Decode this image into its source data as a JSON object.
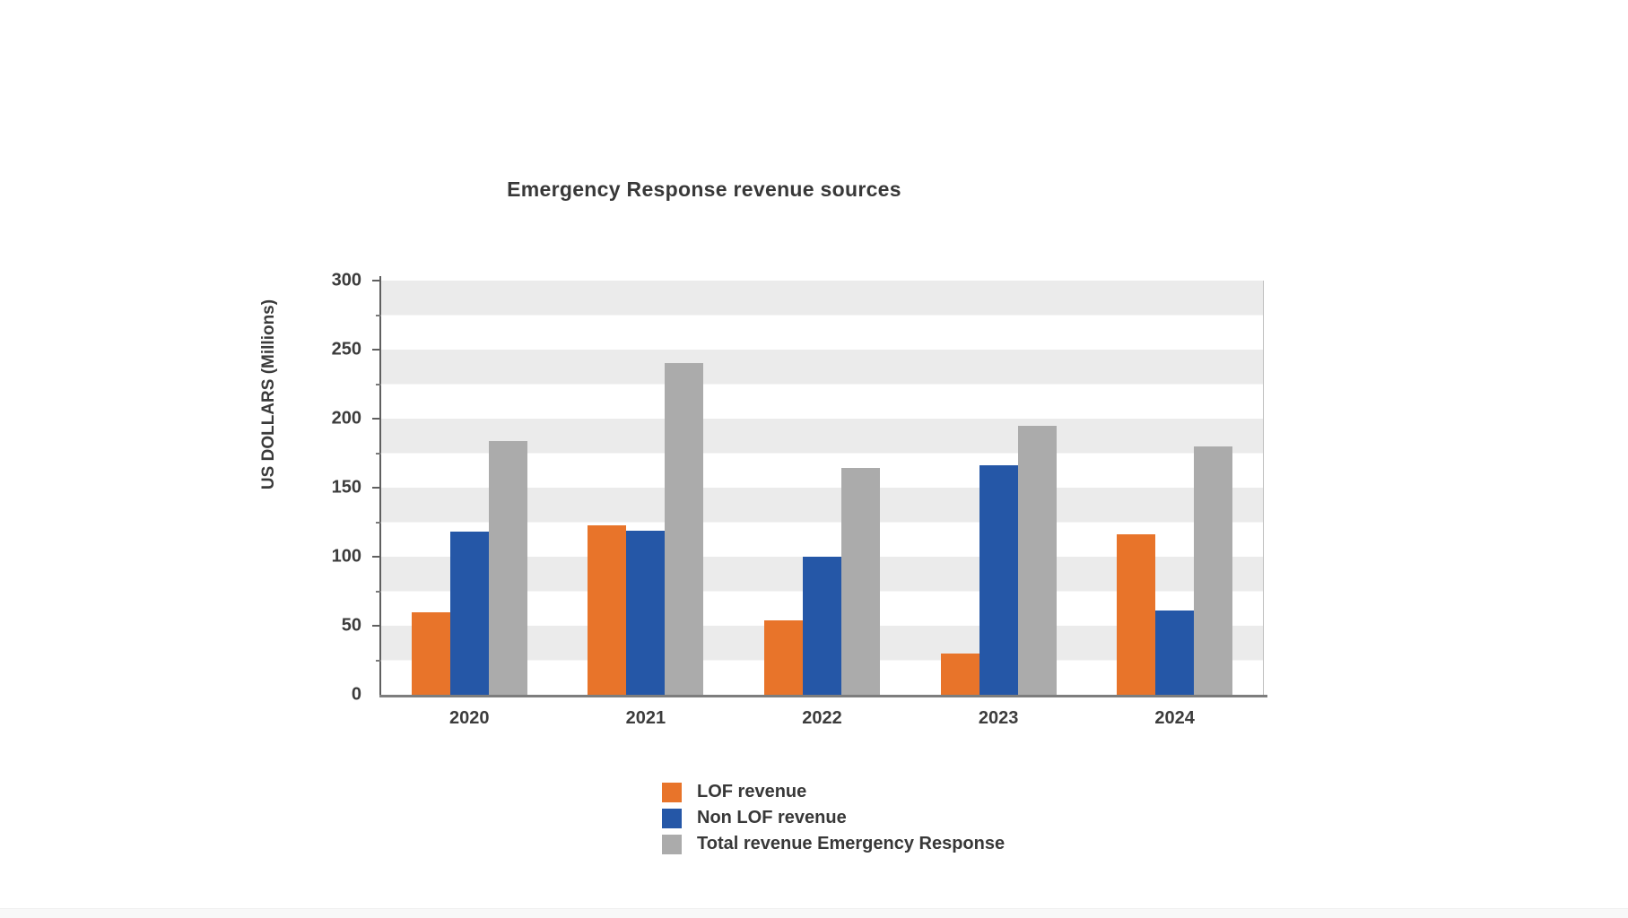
{
  "chart_data": {
    "type": "bar",
    "title": "Emergency Response revenue sources",
    "ylabel": "US DOLLARS (Millions)",
    "xlabel": "",
    "ylim": [
      0,
      300
    ],
    "yticks": [
      0,
      50,
      100,
      150,
      200,
      250,
      300
    ],
    "minor_tick_step": 25,
    "grid": "horizontal striped bands every 25 units",
    "legend_position": "bottom-left",
    "categories": [
      "2020",
      "2021",
      "2022",
      "2023",
      "2024"
    ],
    "series": [
      {
        "name": "LOF revenue",
        "color": "#E8742A",
        "values": [
          60,
          123,
          54,
          30,
          116
        ]
      },
      {
        "name": "Non LOF revenue",
        "color": "#2557A7",
        "values": [
          118,
          119,
          100,
          166,
          61
        ]
      },
      {
        "name": "Total revenue Emergency Response",
        "color": "#ABABAB",
        "values": [
          184,
          240,
          164,
          195,
          180
        ]
      }
    ],
    "colors": {
      "stripe_band": "#EBEBEB",
      "axis_line": "#5F5F5F",
      "text": "#3A3A3A"
    }
  }
}
